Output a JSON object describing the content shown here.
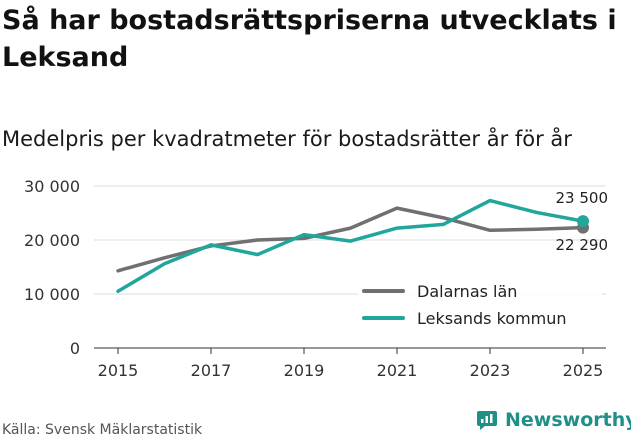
{
  "header": {
    "title": "Så har bostadsrättspriserna utvecklats i Leksand",
    "subtitle": "Medelpris per kvadratmeter för bostadsrätter år för år"
  },
  "footer": {
    "source": "Källa: Svensk Mäklarstatistik",
    "brand": "Newsworthy"
  },
  "colors": {
    "dalarna": "#707070",
    "leksand": "#20a69b",
    "grid": "#dddddd",
    "brand": "#1f8f87"
  },
  "chart_data": {
    "type": "line",
    "title": "Så har bostadsrättspriserna utvecklats i Leksand",
    "subtitle": "Medelpris per kvadratmeter för bostadsrätter år för år",
    "xlabel": "",
    "ylabel": "",
    "x": [
      2015,
      2016,
      2017,
      2018,
      2019,
      2020,
      2021,
      2022,
      2023,
      2024,
      2025
    ],
    "x_ticks": [
      2015,
      2017,
      2019,
      2021,
      2023,
      2025
    ],
    "xlim": [
      2015,
      2025
    ],
    "ylim": [
      0,
      30000
    ],
    "y_ticks": [
      {
        "value": 0,
        "label": "0"
      },
      {
        "value": 10000,
        "label": "10 000"
      },
      {
        "value": 20000,
        "label": "20 000"
      },
      {
        "value": 30000,
        "label": "30 000"
      }
    ],
    "grid": true,
    "legend_position": "lower-right",
    "series": [
      {
        "name": "Dalarnas län",
        "color": "#707070",
        "values": [
          14300,
          16700,
          18900,
          20000,
          20300,
          22200,
          25900,
          24100,
          21800,
          22000,
          22290
        ],
        "end_label": "22 290"
      },
      {
        "name": "Leksands kommun",
        "color": "#20a69b",
        "values": [
          10500,
          15600,
          19100,
          17300,
          21000,
          19800,
          22200,
          22900,
          27300,
          25100,
          23500
        ],
        "end_label": "23 500"
      }
    ]
  }
}
